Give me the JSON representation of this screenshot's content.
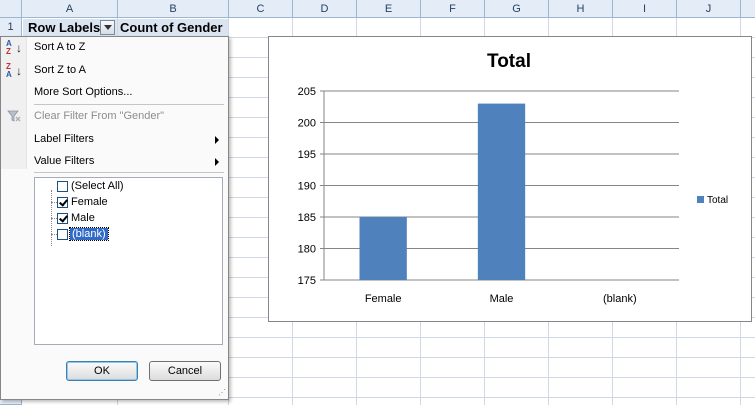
{
  "columns": [
    "A",
    "B",
    "C",
    "D",
    "E",
    "F",
    "G",
    "H",
    "I",
    "J"
  ],
  "rows": [
    "1"
  ],
  "cells": {
    "a1": "Row Labels",
    "b1": "Count of Gender"
  },
  "menu": {
    "sort_az": "Sort A to Z",
    "sort_za": "Sort Z to A",
    "more_sort": "More Sort Options...",
    "clear_filter": "Clear Filter From \"Gender\"",
    "label_filters": "Label Filters",
    "value_filters": "Value Filters",
    "list": [
      {
        "label": "(Select All)",
        "checked": false
      },
      {
        "label": "Female",
        "checked": true
      },
      {
        "label": "Male",
        "checked": true
      },
      {
        "label": "(blank)",
        "checked": false
      }
    ],
    "ok": "OK",
    "cancel": "Cancel"
  },
  "chart_data": {
    "type": "bar",
    "title": "Total",
    "categories": [
      "Female",
      "Male",
      "(blank)"
    ],
    "series": [
      {
        "name": "Total",
        "values": [
          185,
          203,
          null
        ],
        "color": "#4f81bd"
      }
    ],
    "ylim": [
      175,
      205
    ],
    "yticks": [
      175,
      180,
      185,
      190,
      195,
      200,
      205
    ],
    "grid": true,
    "legend": "right"
  }
}
